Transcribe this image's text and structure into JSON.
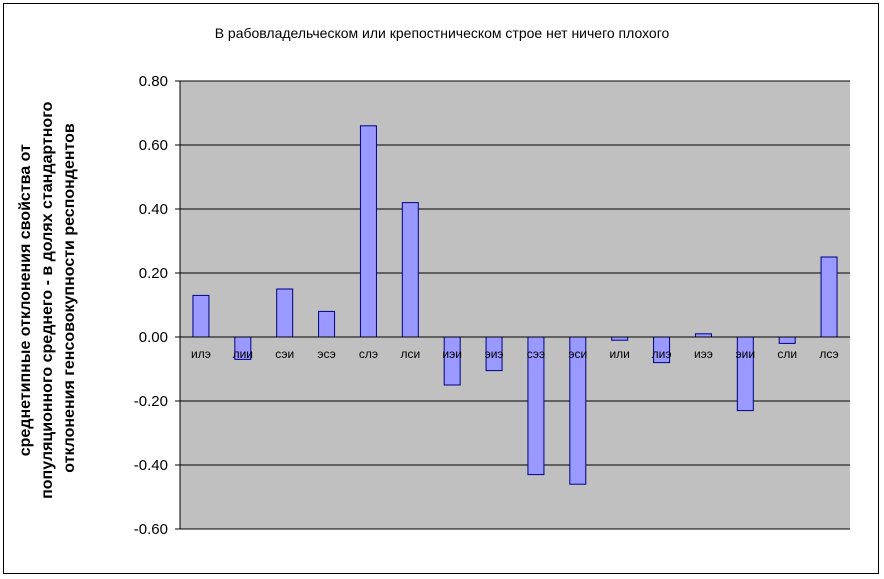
{
  "chart_data": {
    "type": "bar",
    "title": "В рабовладельческом или крепостническом строе нет ничего плохого",
    "ylabel_lines": [
      "среднетипные отклонения свойства от",
      "популяционного среднего - в долях стандартного",
      "отклонения генсовокупности респондентов"
    ],
    "categories": [
      "илэ",
      "лии",
      "сэи",
      "эсэ",
      "слэ",
      "лси",
      "иэи",
      "эиэ",
      "сээ",
      "эси",
      "или",
      "лиэ",
      "иээ",
      "эии",
      "сли",
      "лсэ"
    ],
    "values": [
      0.13,
      -0.07,
      0.15,
      0.08,
      0.66,
      0.42,
      -0.15,
      -0.105,
      -0.43,
      -0.46,
      -0.01,
      -0.08,
      0.01,
      -0.23,
      -0.02,
      0.25
    ],
    "ylim": [
      -0.6,
      0.8
    ],
    "yticks": [
      "0.80",
      "0.60",
      "0.40",
      "0.20",
      "0.00",
      "-0.20",
      "-0.40",
      "-0.60"
    ],
    "ytick_values": [
      0.8,
      0.6,
      0.4,
      0.2,
      0.0,
      -0.2,
      -0.4,
      -0.6
    ],
    "grid": true,
    "legend": false,
    "colors": {
      "plot_background": "#c0c0c0",
      "bar_fill": "#9999ff",
      "bar_stroke": "#000080",
      "grid": "#000000"
    }
  }
}
